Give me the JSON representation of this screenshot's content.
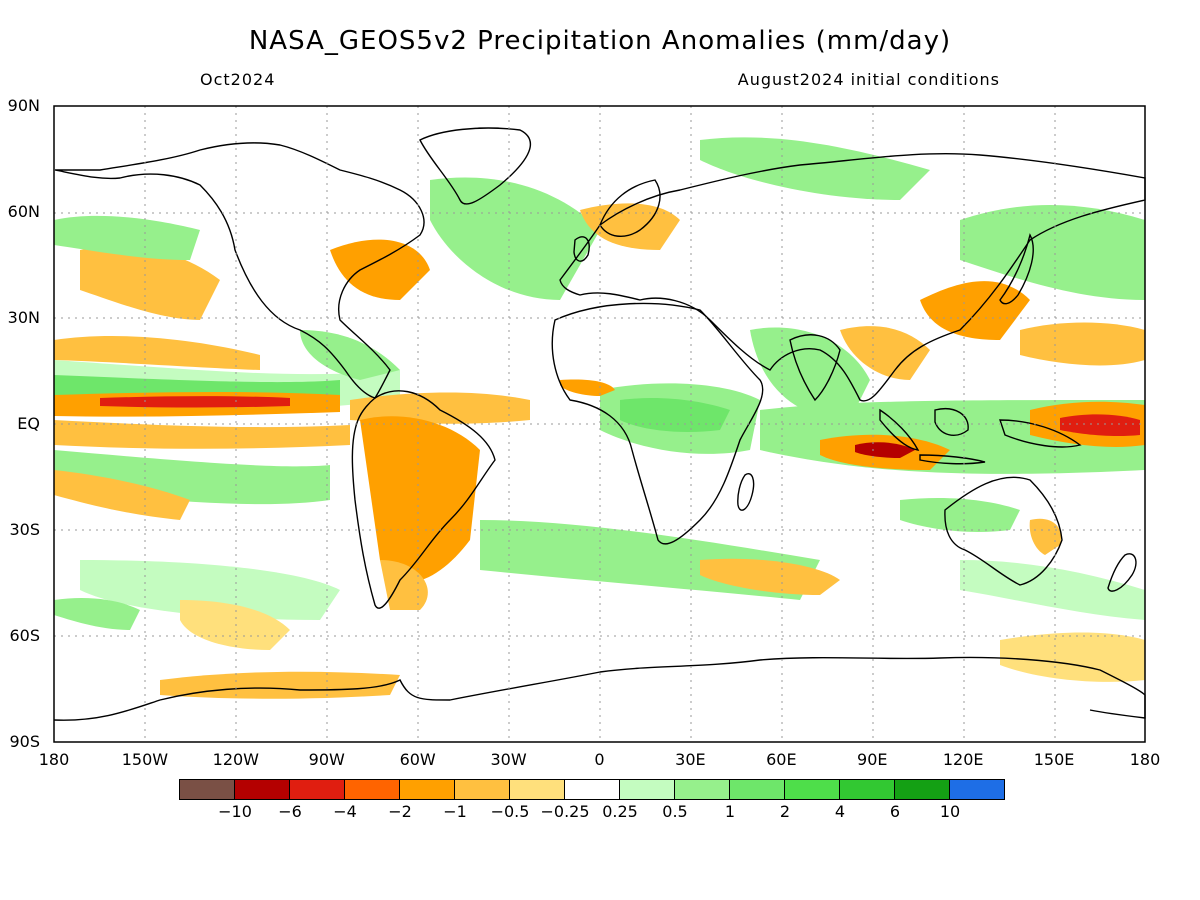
{
  "header": {
    "title": "NASA_GEOS5v2 Precipitation Anomalies (mm/day)",
    "valid_month": "Oct2024",
    "initial_conditions": "August2024 initial conditions"
  },
  "map": {
    "lat_labels": [
      "90N",
      "60N",
      "30N",
      "EQ",
      "30S",
      "60S",
      "90S"
    ],
    "lon_labels": [
      "180",
      "150W",
      "120W",
      "90W",
      "60W",
      "30W",
      "0",
      "30E",
      "60E",
      "90E",
      "120E",
      "150E",
      "180"
    ],
    "land_color": "#ffffff",
    "coastline_color": "#000000",
    "grid_color": "#999999"
  },
  "colorbar": {
    "colors": [
      "#7a5045",
      "#b40000",
      "#e01e10",
      "#ff6400",
      "#ffa000",
      "#ffc040",
      "#ffe07c",
      "#ffffff",
      "#c4fcc0",
      "#96f08c",
      "#6ee66a",
      "#4ede4a",
      "#32c832",
      "#14a014",
      "#1e6ee6"
    ],
    "labels": [
      "−10",
      "−6",
      "−4",
      "−2",
      "−1",
      "−0.5",
      "−0.25",
      "0.25",
      "0.5",
      "1",
      "2",
      "4",
      "6",
      "10"
    ]
  }
}
